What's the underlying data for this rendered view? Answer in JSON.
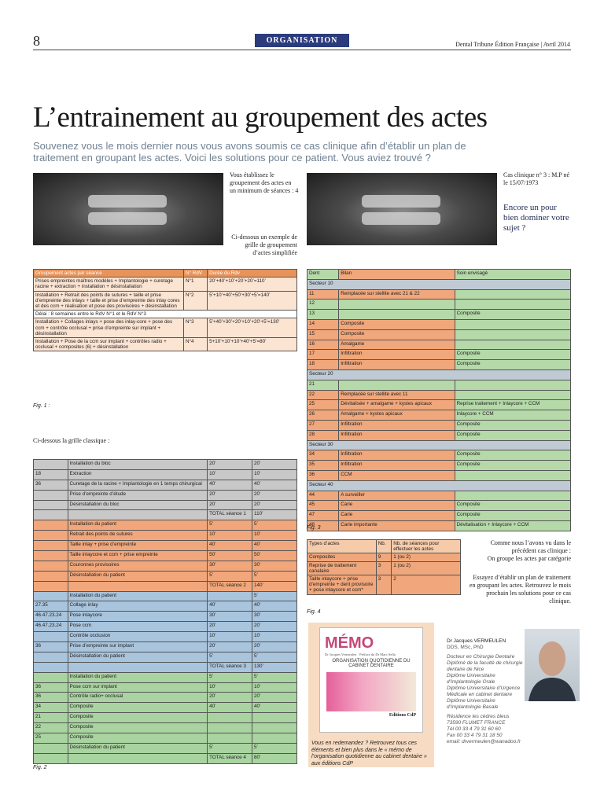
{
  "header": {
    "page_number": "8",
    "section": "ORGANISATION",
    "publication": "Dental Tribune Édition Française | Avril 2014"
  },
  "title": "L’entrainement au groupement des actes",
  "lead": "Souvenez vous le mois dernier nous vous avons soumis ce cas clinique afin d’établir un plan de traitement en groupant les actes. Voici les solutions pour ce patient. Vous aviez trouvé ?",
  "left_notes": {
    "minimum": "Vous établissez le groupement des actes en un minimum de séances : 4",
    "example": "Ci-dessous un exemple de grille de groupement d’actes simplifiée"
  },
  "right_notes": {
    "case": "Cas clinique n° 3 : M.P né le 15/07/1973",
    "teaser": "Encore un pour bien dominer votre sujet ?"
  },
  "fig1": {
    "headers": [
      "Groupement actes par séance",
      "N° RdV",
      "Durée du Rdv"
    ],
    "rows": [
      [
        "Prises empreintes maîtres modèles + Implantologie + curetage racine + extraction + installation + désinstallation",
        "N°1",
        "20’+40’+10’+20’+20’=110’"
      ],
      [
        "Installation + Retrait des points de sutures + taille et prise d’empreinte des inlays + taille et prise d’empreinte des inlay cores et des ccm + réalisation et pose des provisoires + désinstallation",
        "N°2",
        "5’+10’+40’+50’+30’+5’=140’"
      ],
      [
        "Délai : 8 semaines entre le RdV N°1 et le RdV N°3"
      ],
      [
        "Installation + Collages inlays + pose des inlay-core + pose des ccm + contrôle occlusal + prise d’empreinte sur implant + désinstallation",
        "N°3",
        "5’+40’+30’+20’+10’+20’+5’=130’"
      ],
      [
        "Installation + Pose de la ccm sur implant + contrôles radio + occlusal + composites (6) + désinstallation",
        "N°4",
        "5+10’+10’+10’+40’+5’=80’"
      ]
    ],
    "caption": "Fig. 1 :"
  },
  "fig2_intro": "Ci-dessous la grille classique :",
  "fig2": {
    "groups": [
      {
        "color": "#c8c8c8",
        "rows": [
          [
            null,
            "Installation du bloc",
            "20’",
            "20’"
          ],
          [
            "18",
            "Extraction",
            "10’",
            "10’"
          ],
          [
            "36",
            "Curetage de la racine + Implantologie en 1 temps chirurgical",
            "40’",
            "40’"
          ],
          [
            null,
            "Prise d’empreinte d’étude",
            "20’",
            "20’"
          ],
          [
            null,
            "Désinstallation du bloc",
            "20’",
            "20’"
          ],
          [
            null,
            null,
            "TOTAL séance 1",
            "110’"
          ]
        ]
      },
      {
        "color": "#f1a77b",
        "rows": [
          [
            null,
            "Installation du patient",
            "5’",
            "5’"
          ],
          [
            null,
            "Retrait des points de sutures",
            "10’",
            "10’"
          ],
          [
            null,
            "Taille inlay + prise d’empreinte",
            "40’",
            "40’"
          ],
          [
            null,
            "Taille inlaycore et ccm + prise empreinte",
            "50’",
            "50’"
          ],
          [
            null,
            "Couronnes provisoires",
            "30’",
            "30’"
          ],
          [
            null,
            "Désinstallation du patient",
            "5’",
            "5’"
          ],
          [
            null,
            null,
            "TOTAL séance 2",
            "140’"
          ]
        ]
      },
      {
        "color": "#a9c4dd",
        "rows": [
          [
            null,
            "Installation du patient",
            null,
            "5’"
          ],
          [
            "27.35",
            "Collage inlay",
            "40’",
            "40’"
          ],
          [
            "46.47.23.24",
            "Pose inlaycore",
            "30’",
            "30’"
          ],
          [
            "46.47.23.24",
            "Pose ccm",
            "20’",
            "20’"
          ],
          [
            null,
            "Contrôle occlusion",
            "10’",
            "10’"
          ],
          [
            "36",
            "Prise d’empreinte sur implant",
            "20’",
            "20’"
          ],
          [
            null,
            "Désinstallation du patient",
            "5’",
            "5’"
          ],
          [
            null,
            null,
            "TOTAL séance 3",
            "130’"
          ]
        ]
      },
      {
        "color": "#a9d3a0",
        "rows": [
          [
            null,
            "Installation du patient",
            "5’",
            "5’"
          ],
          [
            "36",
            "Pose ccm sur implant",
            "10’",
            "10’"
          ],
          [
            "36",
            "Contrôle radio+ occlusal",
            "20’",
            "20’"
          ],
          [
            "34",
            "Composite",
            "40’",
            "40’"
          ],
          [
            "21",
            "Composite",
            null,
            null
          ],
          [
            "22",
            "Composite",
            null,
            null
          ],
          [
            "25",
            "Composite",
            null,
            null
          ],
          [
            null,
            "Désinstallation du patient",
            "5’",
            "5’"
          ],
          [
            null,
            null,
            "TOTAL séance 4",
            "80’"
          ]
        ]
      }
    ],
    "caption": "Fig. 2"
  },
  "fig3": {
    "headers": [
      "Dent",
      "Bilan",
      "Soin envisagé"
    ],
    "sectors": [
      {
        "name": "Secteur 10",
        "rows": [
          [
            "11",
            "Remplacée sur stellite avec 21 & 22",
            null
          ],
          [
            "12",
            null,
            null
          ],
          [
            "13",
            null,
            "Composite"
          ],
          [
            "14",
            "Composite",
            null
          ],
          [
            "15",
            "Composite",
            null
          ],
          [
            "16",
            "Amalgame",
            null
          ],
          [
            "17",
            "Infiltration",
            "Composite"
          ],
          [
            "18",
            "Infiltration",
            "Composite"
          ]
        ]
      },
      {
        "name": "Secteur 20",
        "rows": [
          [
            "21",
            null,
            null
          ],
          [
            "22",
            "Remplacée sur stellite avec 11",
            null
          ],
          [
            "25",
            "Dévitalisée + amalgame + kystes apicaux",
            "Reprise traitement + Inlaycore + CCM"
          ],
          [
            "26",
            "Amalgame + kystes apicaux",
            "Inlaycore + CCM"
          ],
          [
            "27",
            "Infiltration",
            "Composite"
          ],
          [
            "28",
            "Infiltration",
            "Composite"
          ]
        ]
      },
      {
        "name": "Secteur 30",
        "rows": [
          [
            "34",
            "Infiltration",
            "Composite"
          ],
          [
            "35",
            "Infiltration",
            "Composite"
          ],
          [
            "36",
            "CCM",
            null
          ]
        ]
      },
      {
        "name": "Secteur 40",
        "rows": [
          [
            "44",
            "A surveiller",
            null
          ],
          [
            "45",
            "Carie",
            "Composite"
          ],
          [
            "47",
            "Carie",
            "Composite"
          ],
          [
            "48",
            "Carie importante",
            "Dévitalisation + Inlaycore + CCM"
          ]
        ]
      }
    ],
    "caption": "Fig. 3"
  },
  "fig4": {
    "headers": [
      "Types d’actes",
      "Nb.",
      "Nb. de séances pour effectuer les actes"
    ],
    "rows": [
      [
        "Composites",
        "9",
        "1 (ou 2)"
      ],
      [
        "Reprise de traitement canalaire",
        "3",
        "1 (ou 2)"
      ],
      [
        "Taille inlaycore + prise d’empreinte + dent provisoire + pose inlaycore et ccm*",
        "3",
        "2"
      ]
    ],
    "caption": "Fig. 4"
  },
  "conclusion": {
    "p1": "Comme nous l’avons vu dans le précédent cas clinique :",
    "p2": "On groupe les actes par catégorie",
    "p3": "Essayez d’établir un plan de traitement en groupant les actes. Retrouvez le mois prochain les solutions pour ce cas clinique."
  },
  "book": {
    "title": "MÉMO",
    "authors": "Dr Jacques Vermeulen · Préface du Dr Marc Sella",
    "subtitle": "ORGANISATION QUOTIDIENNE DU CABINET DENTAIRE",
    "publisher": "Editions CdP",
    "caption": "Vous en redemandez ? Retrouvez tous ces éléments et bien plus dans le « mémo de l’organisation quotidienne au cabinet dentaire » aux éditions CdP"
  },
  "author": {
    "name": "Dr Jacques VERMEULEN",
    "degrees": "DDS, MSc, PhD",
    "titles": [
      "Docteur en Chirurgie Dentaire",
      "Diplômé de la faculté de chirurgie dentaire de Nice",
      "Diplôme Universitaire d’Implantologie Orale",
      "Diplôme Universitaire d’Urgence Médicale en cabinet dentaire",
      "Diplôme Universitaire d’Implantologie Basale"
    ],
    "address": [
      "Résidence les cèdres bleus",
      "73590 FLUMET FRANCE",
      "Tél 00 33 4 79 31 60 60",
      "Fax 00 33 4 79 31 18 50",
      "email: drvermeulen@wanadoo.fr"
    ]
  }
}
